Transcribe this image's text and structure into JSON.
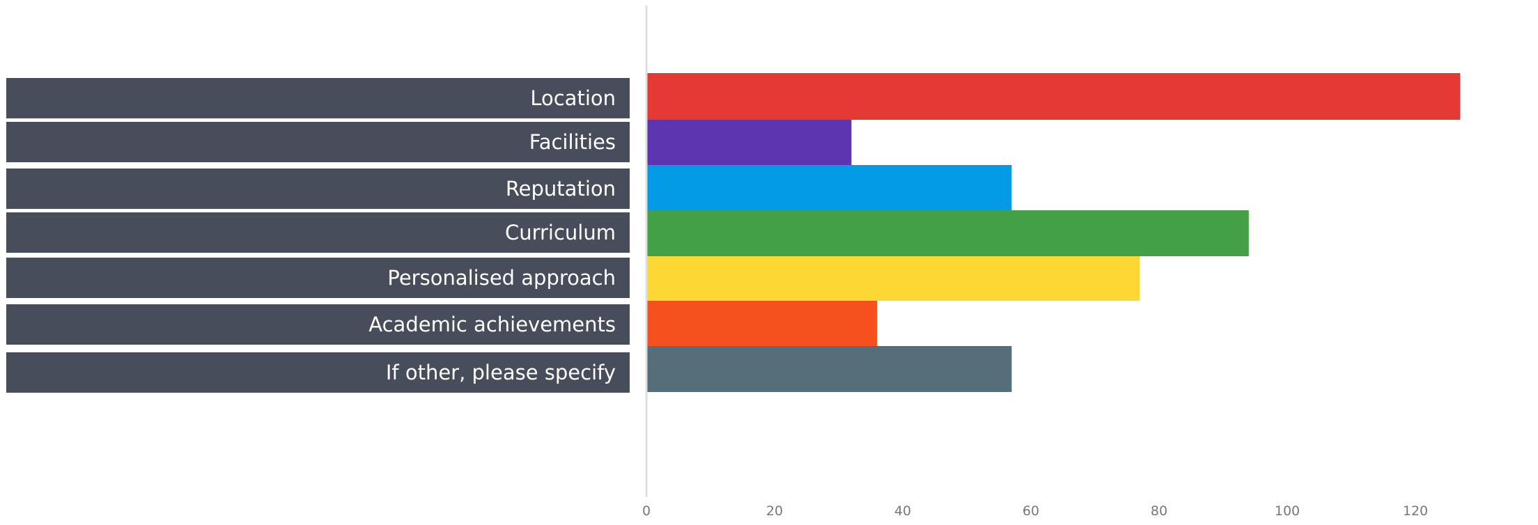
{
  "chart_data": {
    "type": "bar",
    "orientation": "horizontal",
    "title": "",
    "xlabel": "",
    "ylabel": "",
    "categories": [
      "Location",
      "Facilities",
      "Reputation",
      "Curriculum",
      "Personalised approach",
      "Academic achievements",
      "If other, please specify"
    ],
    "values": [
      127,
      32,
      57,
      94,
      77,
      36,
      57
    ],
    "colors": [
      "#e53935",
      "#5e35b1",
      "#039be5",
      "#43a047",
      "#fdd835",
      "#f4511e",
      "#546e7a"
    ],
    "label_background": "#474d5b",
    "xlim": [
      0,
      138
    ],
    "xticks": [
      0,
      20,
      40,
      60,
      80,
      100,
      120
    ],
    "grid": false,
    "legend": "none"
  }
}
